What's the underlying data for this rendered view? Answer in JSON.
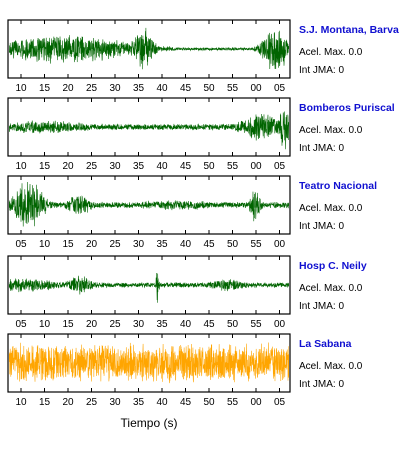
{
  "chart_data": {
    "type": "line",
    "xlabel": "Tiempo (s)",
    "accel_label": "Acel. Max.",
    "jma_label": "Int JMA:",
    "series": [
      {
        "name": "S.J. Montana, Barva",
        "color": "#006400",
        "acel_max": "0.0",
        "int_jma": "0",
        "tick_labels": [
          "10",
          "15",
          "20",
          "25",
          "30",
          "35",
          "40",
          "45",
          "50",
          "55",
          "00",
          "05"
        ],
        "bursts": [
          [
            0.2,
            0.28,
            0.55
          ],
          [
            0.48,
            0.04,
            0.85
          ],
          [
            0.95,
            0.05,
            1.0
          ]
        ],
        "base_amp": 0.06
      },
      {
        "name": "Bomberos Puriscal",
        "color": "#006400",
        "acel_max": "0.0",
        "int_jma": "0",
        "tick_labels": [
          "10",
          "15",
          "20",
          "25",
          "30",
          "35",
          "40",
          "45",
          "50",
          "55",
          "00",
          "05"
        ],
        "bursts": [
          [
            0.12,
            0.22,
            0.25
          ],
          [
            0.9,
            0.08,
            0.55
          ],
          [
            0.985,
            0.02,
            1.0
          ]
        ],
        "base_amp": 0.12
      },
      {
        "name": "Teatro Nacional",
        "color": "#006400",
        "acel_max": "0.0",
        "int_jma": "0",
        "tick_labels": [
          "05",
          "10",
          "15",
          "20",
          "25",
          "30",
          "35",
          "40",
          "45",
          "50",
          "55",
          "00"
        ],
        "bursts": [
          [
            0.07,
            0.06,
            1.0
          ],
          [
            0.25,
            0.05,
            0.45
          ],
          [
            0.6,
            0.2,
            0.2
          ],
          [
            0.88,
            0.02,
            0.7
          ]
        ],
        "base_amp": 0.12
      },
      {
        "name": "Hosp C. Neily",
        "color": "#006400",
        "acel_max": "0.0",
        "int_jma": "0",
        "tick_labels": [
          "05",
          "10",
          "15",
          "20",
          "25",
          "30",
          "35",
          "40",
          "45",
          "50",
          "55",
          "00"
        ],
        "bursts": [
          [
            0.05,
            0.15,
            0.3
          ],
          [
            0.25,
            0.05,
            0.4
          ],
          [
            0.53,
            0.006,
            1.0
          ],
          [
            0.78,
            0.08,
            0.25
          ]
        ],
        "base_amp": 0.1
      },
      {
        "name": "La Sabana",
        "color": "#ffa500",
        "acel_max": "0.0",
        "int_jma": "0",
        "tick_labels": [
          "10",
          "15",
          "20",
          "25",
          "30",
          "35",
          "40",
          "45",
          "50",
          "55",
          "00",
          "05"
        ],
        "bursts": [
          [
            0.5,
            1.0,
            0.6
          ]
        ],
        "base_amp": 0.75
      }
    ]
  }
}
